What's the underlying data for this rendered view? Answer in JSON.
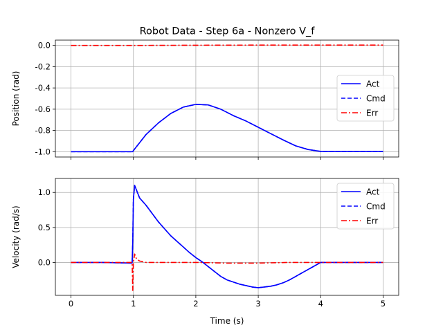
{
  "figure": {
    "title": "Robot Data - Step 6a - Nonzero V_f",
    "xlabel": "Time (s)"
  },
  "chart_data": [
    {
      "type": "line",
      "ylabel": "Position (rad)",
      "xlim": [
        -0.25,
        5.25
      ],
      "ylim": [
        -1.05,
        0.05
      ],
      "xticks": [
        "0",
        "1",
        "2",
        "3",
        "4",
        "5"
      ],
      "yticks": [
        "0.0",
        "-0.2",
        "-0.4",
        "-0.6",
        "-0.8",
        "-1.0"
      ],
      "grid": true,
      "legend": "center-right",
      "series": [
        {
          "name": "Act",
          "color": "#0000ff",
          "style": "solid",
          "x": [
            0,
            0.5,
            0.99,
            1.0,
            1.2,
            1.4,
            1.6,
            1.8,
            2.0,
            2.2,
            2.4,
            2.6,
            2.8,
            3.0,
            3.2,
            3.4,
            3.6,
            3.8,
            4.0,
            4.5,
            5.0
          ],
          "y": [
            -1.0,
            -1.0,
            -1.0,
            -0.99,
            -0.84,
            -0.73,
            -0.64,
            -0.58,
            -0.555,
            -0.56,
            -0.6,
            -0.66,
            -0.71,
            -0.77,
            -0.83,
            -0.89,
            -0.945,
            -0.98,
            -0.997,
            -0.997,
            -0.997
          ]
        },
        {
          "name": "Cmd",
          "color": "#0000ff",
          "style": "dashed",
          "x": [
            0,
            0.5,
            0.99,
            1.0,
            1.2,
            1.4,
            1.6,
            1.8,
            2.0,
            2.2,
            2.4,
            2.6,
            2.8,
            3.0,
            3.2,
            3.4,
            3.6,
            3.8,
            4.0,
            4.5,
            5.0
          ],
          "y": [
            -1.0,
            -1.0,
            -1.0,
            -0.99,
            -0.84,
            -0.73,
            -0.64,
            -0.58,
            -0.555,
            -0.56,
            -0.6,
            -0.66,
            -0.71,
            -0.77,
            -0.83,
            -0.89,
            -0.945,
            -0.98,
            -0.997,
            -0.997,
            -0.997
          ]
        },
        {
          "name": "Err",
          "color": "#ff0000",
          "style": "dashdot",
          "x": [
            0,
            1,
            2,
            3,
            4,
            5
          ],
          "y": [
            0.0,
            0.0,
            0.002,
            0.003,
            0.003,
            0.003
          ]
        }
      ]
    },
    {
      "type": "line",
      "ylabel": "Velocity (rad/s)",
      "xlim": [
        -0.25,
        5.25
      ],
      "ylim": [
        -0.47,
        1.2
      ],
      "xticks": [
        "0",
        "1",
        "2",
        "3",
        "4",
        "5"
      ],
      "yticks": [
        "1.0",
        "0.5",
        "0.0"
      ],
      "grid": true,
      "legend": "top-right",
      "series": [
        {
          "name": "Act",
          "color": "#0000ff",
          "style": "solid",
          "x": [
            0,
            0.5,
            0.98,
            0.99,
            1.0,
            1.02,
            1.1,
            1.2,
            1.3,
            1.4,
            1.5,
            1.6,
            1.7,
            1.8,
            1.9,
            2.0,
            2.1,
            2.2,
            2.3,
            2.4,
            2.5,
            2.6,
            2.7,
            2.8,
            2.9,
            3.0,
            3.1,
            3.2,
            3.3,
            3.4,
            3.5,
            3.6,
            3.7,
            3.8,
            3.9,
            4.0,
            4.5,
            5.0
          ],
          "y": [
            0.0,
            0.0,
            -0.01,
            0.3,
            0.9,
            1.1,
            0.92,
            0.82,
            0.7,
            0.58,
            0.48,
            0.38,
            0.3,
            0.22,
            0.14,
            0.07,
            0.01,
            -0.06,
            -0.13,
            -0.2,
            -0.25,
            -0.28,
            -0.31,
            -0.33,
            -0.35,
            -0.36,
            -0.35,
            -0.34,
            -0.32,
            -0.29,
            -0.25,
            -0.2,
            -0.15,
            -0.1,
            -0.05,
            0.0,
            0.0,
            0.0
          ]
        },
        {
          "name": "Cmd",
          "color": "#0000ff",
          "style": "dashed",
          "x": [
            0,
            0.5,
            0.98,
            0.99,
            1.0,
            1.02,
            1.1,
            1.2,
            1.3,
            1.4,
            1.5,
            1.6,
            1.7,
            1.8,
            1.9,
            2.0,
            2.1,
            2.2,
            2.3,
            2.4,
            2.5,
            2.6,
            2.7,
            2.8,
            2.9,
            3.0,
            3.1,
            3.2,
            3.3,
            3.4,
            3.5,
            3.6,
            3.7,
            3.8,
            3.9,
            4.0,
            4.5,
            5.0
          ],
          "y": [
            0.0,
            0.0,
            -0.01,
            0.3,
            0.9,
            1.1,
            0.92,
            0.82,
            0.7,
            0.58,
            0.48,
            0.38,
            0.3,
            0.22,
            0.14,
            0.07,
            0.01,
            -0.06,
            -0.13,
            -0.2,
            -0.25,
            -0.28,
            -0.31,
            -0.33,
            -0.35,
            -0.36,
            -0.35,
            -0.34,
            -0.32,
            -0.29,
            -0.25,
            -0.2,
            -0.15,
            -0.1,
            -0.05,
            0.0,
            0.0,
            0.0
          ]
        },
        {
          "name": "Err",
          "color": "#ff0000",
          "style": "dashdot",
          "x": [
            0,
            0.5,
            0.98,
            0.99,
            1.0,
            1.02,
            1.05,
            1.1,
            1.2,
            1.5,
            2.0,
            2.5,
            3.0,
            3.5,
            4.0,
            4.5,
            5.0
          ],
          "y": [
            0.0,
            0.0,
            0.0,
            -0.4,
            0.0,
            0.12,
            0.05,
            0.02,
            0.0,
            0.0,
            0.0,
            -0.01,
            -0.01,
            0.0,
            0.0,
            0.0,
            0.0
          ]
        }
      ]
    }
  ]
}
